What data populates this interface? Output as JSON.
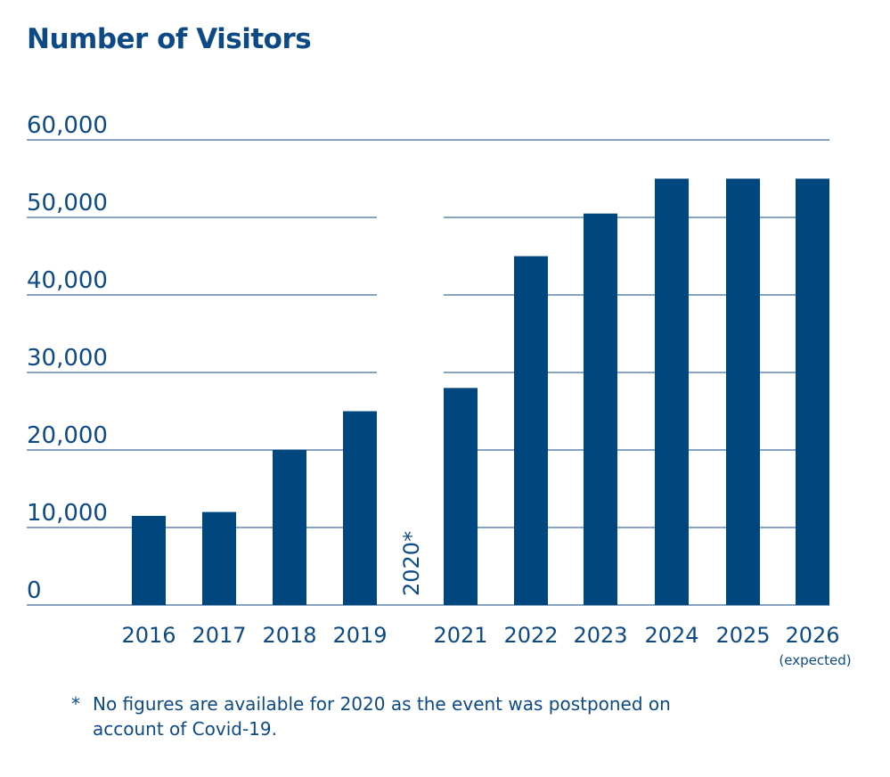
{
  "chart_data": {
    "type": "bar",
    "title": "Number of Visitors",
    "categories": [
      "2016",
      "2017",
      "2018",
      "2019",
      "2020*",
      "2021",
      "2022",
      "2023",
      "2024",
      "2025",
      "2026"
    ],
    "values": [
      11500,
      12000,
      20000,
      25000,
      null,
      28000,
      45000,
      50500,
      55000,
      55000,
      55000
    ],
    "category_notes": {
      "2026": "(expected)"
    },
    "missing_label": "2020*",
    "yticks": [
      "0",
      "10,000",
      "20,000",
      "30,000",
      "40,000",
      "50,000",
      "60,000"
    ],
    "ytick_values": [
      0,
      10000,
      20000,
      30000,
      40000,
      50000,
      60000
    ],
    "ylim": [
      0,
      60000
    ],
    "xlabel": "",
    "ylabel": "",
    "grid": true,
    "bar_color": "#00467f",
    "text_color": "#0d4a85",
    "footnote_marker": "*",
    "footnote": "No figures are available for 2020 as the event was postponed on account of Covid-19."
  }
}
